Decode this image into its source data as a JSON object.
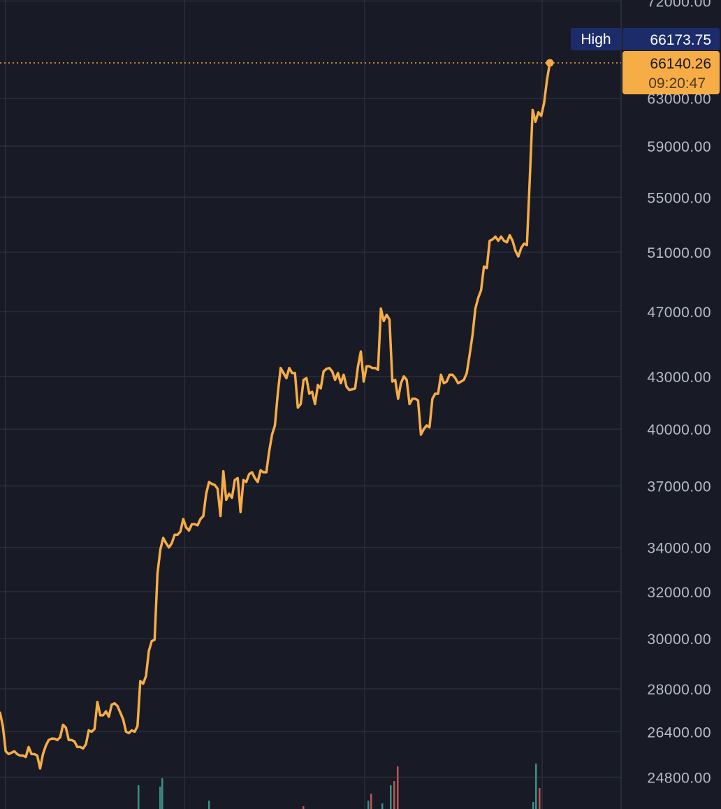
{
  "chart_data": {
    "type": "line",
    "title": "",
    "xlabel": "",
    "ylabel": "",
    "y_scale": "log",
    "ylim": [
      24200,
      74000
    ],
    "x_range": [
      0,
      264
    ],
    "grid": true,
    "y_ticks": [
      72000,
      63000,
      59000,
      55000,
      51000,
      47000,
      43000,
      40000,
      37000,
      34000,
      32000,
      30000,
      28000,
      26400,
      24800
    ],
    "y_tick_labels": [
      "72000.00",
      "63000.00",
      "59000.00",
      "55000.00",
      "51000.00",
      "47000.00",
      "43000.00",
      "40000.00",
      "37000.00",
      "34000.00",
      "32000.00",
      "30000.00",
      "28000.00",
      "26400.00",
      "24800.00"
    ],
    "series": [
      {
        "color": "#f7ad45",
        "values": [
          [
            0,
            27100
          ],
          [
            1,
            26600
          ],
          [
            2,
            25700
          ],
          [
            3,
            25600
          ],
          [
            4,
            25650
          ],
          [
            5,
            25700
          ],
          [
            6,
            25600
          ],
          [
            7,
            25550
          ],
          [
            8,
            25550
          ],
          [
            9,
            25500
          ],
          [
            10,
            25850
          ],
          [
            11,
            25600
          ],
          [
            12,
            25600
          ],
          [
            13,
            25550
          ],
          [
            14,
            25100
          ],
          [
            15,
            25600
          ],
          [
            16,
            25900
          ],
          [
            17,
            26100
          ],
          [
            18,
            26150
          ],
          [
            19,
            26150
          ],
          [
            20,
            26100
          ],
          [
            21,
            26200
          ],
          [
            22,
            26650
          ],
          [
            23,
            26550
          ],
          [
            24,
            26100
          ],
          [
            25,
            26100
          ],
          [
            26,
            26050
          ],
          [
            27,
            25850
          ],
          [
            28,
            25850
          ],
          [
            29,
            25800
          ],
          [
            30,
            25950
          ],
          [
            31,
            26450
          ],
          [
            32,
            26400
          ],
          [
            33,
            26500
          ],
          [
            34,
            27500
          ],
          [
            35,
            27000
          ],
          [
            36,
            27000
          ],
          [
            37,
            27150
          ],
          [
            38,
            26950
          ],
          [
            39,
            27400
          ],
          [
            40,
            27450
          ],
          [
            41,
            27350
          ],
          [
            42,
            27100
          ],
          [
            43,
            26850
          ],
          [
            44,
            26400
          ],
          [
            45,
            26350
          ],
          [
            46,
            26450
          ],
          [
            47,
            26400
          ],
          [
            48,
            26600
          ],
          [
            49,
            28300
          ],
          [
            50,
            28200
          ],
          [
            51,
            28500
          ],
          [
            52,
            29500
          ],
          [
            53,
            29900
          ],
          [
            54,
            29950
          ],
          [
            55,
            32800
          ],
          [
            56,
            33900
          ],
          [
            57,
            34450
          ],
          [
            58,
            34200
          ],
          [
            59,
            34000
          ],
          [
            60,
            34200
          ],
          [
            61,
            34600
          ],
          [
            62,
            34600
          ],
          [
            63,
            34750
          ],
          [
            64,
            35350
          ],
          [
            65,
            34950
          ],
          [
            66,
            34800
          ],
          [
            67,
            35100
          ],
          [
            68,
            35100
          ],
          [
            69,
            35050
          ],
          [
            70,
            35350
          ],
          [
            71,
            35500
          ],
          [
            72,
            36600
          ],
          [
            73,
            37200
          ],
          [
            74,
            37100
          ],
          [
            75,
            37050
          ],
          [
            76,
            36850
          ],
          [
            77,
            35500
          ],
          [
            78,
            37750
          ],
          [
            79,
            36300
          ],
          [
            80,
            36600
          ],
          [
            81,
            36400
          ],
          [
            82,
            37300
          ],
          [
            83,
            37400
          ],
          [
            84,
            35700
          ],
          [
            85,
            37300
          ],
          [
            86,
            37200
          ],
          [
            87,
            37600
          ],
          [
            88,
            37700
          ],
          [
            89,
            37400
          ],
          [
            90,
            37200
          ],
          [
            91,
            37800
          ],
          [
            92,
            37700
          ],
          [
            93,
            37700
          ],
          [
            94,
            38800
          ],
          [
            95,
            39700
          ],
          [
            96,
            40200
          ],
          [
            97,
            42000
          ],
          [
            98,
            43500
          ],
          [
            99,
            43200
          ],
          [
            100,
            42900
          ],
          [
            101,
            43500
          ],
          [
            102,
            43200
          ],
          [
            103,
            43200
          ],
          [
            104,
            41200
          ],
          [
            105,
            41400
          ],
          [
            106,
            42800
          ],
          [
            107,
            42900
          ],
          [
            108,
            42000
          ],
          [
            109,
            42100
          ],
          [
            110,
            41400
          ],
          [
            111,
            42500
          ],
          [
            112,
            42300
          ],
          [
            113,
            43300
          ],
          [
            114,
            43450
          ],
          [
            115,
            43500
          ],
          [
            116,
            43300
          ],
          [
            117,
            42800
          ],
          [
            118,
            43200
          ],
          [
            119,
            42600
          ],
          [
            120,
            43100
          ],
          [
            121,
            42400
          ],
          [
            122,
            42200
          ],
          [
            123,
            42250
          ],
          [
            124,
            42300
          ],
          [
            125,
            43600
          ],
          [
            126,
            44500
          ],
          [
            127,
            42700
          ],
          [
            128,
            43600
          ],
          [
            129,
            43600
          ],
          [
            130,
            43500
          ],
          [
            131,
            43500
          ],
          [
            132,
            43400
          ],
          [
            133,
            47200
          ],
          [
            134,
            46400
          ],
          [
            135,
            46800
          ],
          [
            136,
            46500
          ],
          [
            137,
            42700
          ],
          [
            138,
            42800
          ],
          [
            139,
            41700
          ],
          [
            140,
            42600
          ],
          [
            141,
            43000
          ],
          [
            142,
            42800
          ],
          [
            143,
            41400
          ],
          [
            144,
            41700
          ],
          [
            145,
            41700
          ],
          [
            146,
            41600
          ],
          [
            147,
            39700
          ],
          [
            148,
            40000
          ],
          [
            149,
            40200
          ],
          [
            150,
            40100
          ],
          [
            151,
            41700
          ],
          [
            152,
            42000
          ],
          [
            153,
            42000
          ],
          [
            154,
            43100
          ],
          [
            155,
            42600
          ],
          [
            156,
            42700
          ],
          [
            157,
            43100
          ],
          [
            158,
            43100
          ],
          [
            159,
            42900
          ],
          [
            160,
            42600
          ],
          [
            161,
            42700
          ],
          [
            162,
            42800
          ],
          [
            163,
            43200
          ],
          [
            164,
            44300
          ],
          [
            165,
            45500
          ],
          [
            166,
            47200
          ],
          [
            167,
            47900
          ],
          [
            168,
            48400
          ],
          [
            169,
            50000
          ],
          [
            170,
            49900
          ],
          [
            171,
            51800
          ],
          [
            172,
            51900
          ],
          [
            173,
            52100
          ],
          [
            174,
            51800
          ],
          [
            175,
            52100
          ],
          [
            176,
            51800
          ],
          [
            177,
            51700
          ],
          [
            178,
            52200
          ],
          [
            179,
            51800
          ],
          [
            180,
            51100
          ],
          [
            181,
            50700
          ],
          [
            182,
            51300
          ],
          [
            183,
            51600
          ],
          [
            184,
            51500
          ],
          [
            185,
            56400
          ],
          [
            186,
            62000
          ],
          [
            187,
            61000
          ],
          [
            188,
            61800
          ],
          [
            189,
            61500
          ],
          [
            190,
            62600
          ],
          [
            191,
            64600
          ],
          [
            192,
            66140
          ]
        ]
      }
    ],
    "current_price": "66140.26",
    "current_time": "09:20:47",
    "high_label": "High",
    "high_value": "66173.75",
    "colors": {
      "background": "#181b25",
      "line": "#f7ad45",
      "grid": "#2a2e3a",
      "high_badge": "#1c2c6b",
      "volume_up": "#3d8f86",
      "volume_down": "#b85652"
    }
  }
}
